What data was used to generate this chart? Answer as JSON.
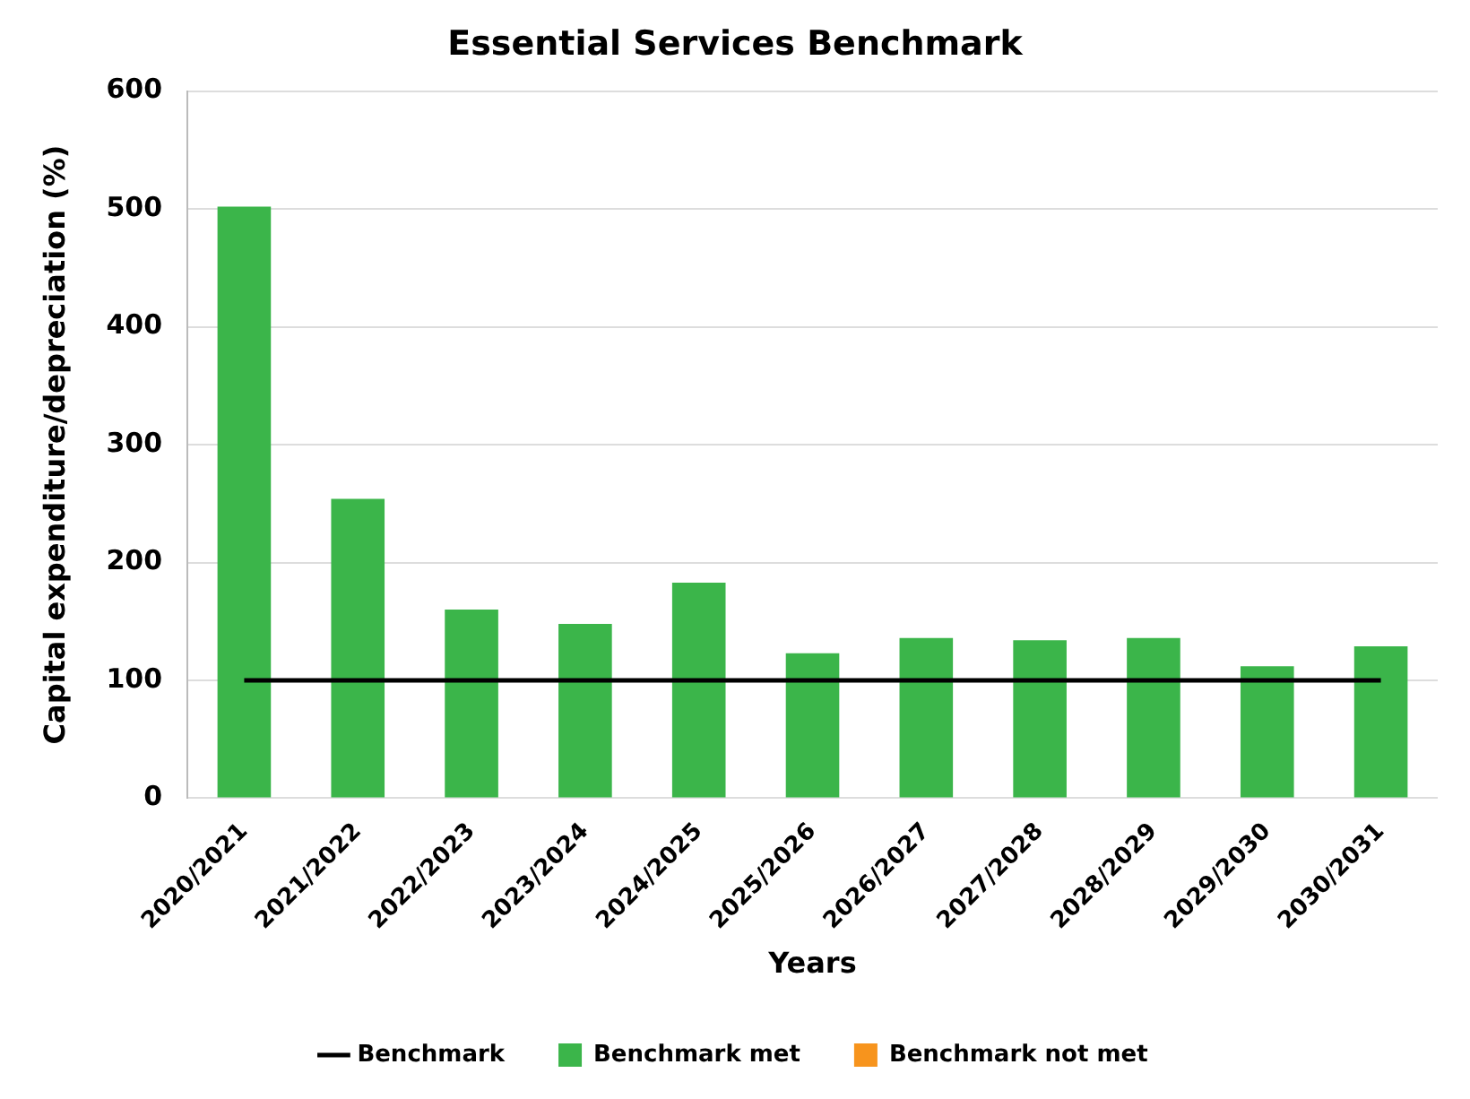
{
  "chart_data": {
    "type": "bar",
    "title": "Essential Services Benchmark",
    "xlabel": "Years",
    "ylabel": "Capital expenditure/depreciation (%)",
    "categories": [
      "2020/2021",
      "2021/2022",
      "2022/2023",
      "2023/2024",
      "2024/2025",
      "2025/2026",
      "2026/2027",
      "2027/2028",
      "2028/2029",
      "2029/2030",
      "2030/2031"
    ],
    "series": [
      {
        "name": "Benchmark met",
        "color": "#3bb54a",
        "values": [
          502,
          254,
          160,
          148,
          183,
          123,
          136,
          134,
          136,
          112,
          129
        ]
      },
      {
        "name": "Benchmark not met",
        "color": "#f7941d",
        "values": [
          null,
          null,
          null,
          null,
          null,
          null,
          null,
          null,
          null,
          null,
          null
        ]
      },
      {
        "name": "Benchmark",
        "type": "line",
        "color": "#000000",
        "values": [
          100,
          100,
          100,
          100,
          100,
          100,
          100,
          100,
          100,
          100,
          100
        ],
        "marker": "none"
      }
    ],
    "ylim": [
      0,
      600
    ],
    "yticks": [
      0,
      100,
      200,
      300,
      400,
      500,
      600
    ],
    "grid": "y",
    "legend": "bottom"
  }
}
